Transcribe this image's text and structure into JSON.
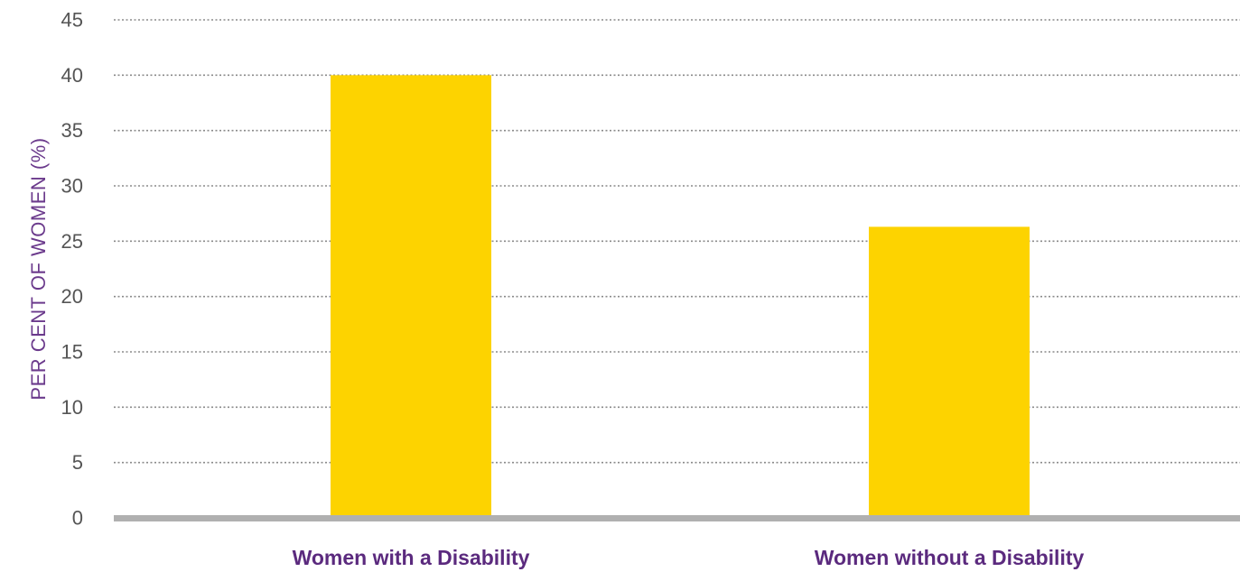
{
  "chart_data": {
    "type": "bar",
    "title": "",
    "xlabel": "",
    "ylabel": "PER CENT OF WOMEN (%)",
    "ylim": [
      0,
      45
    ],
    "yticks": [
      0,
      5,
      10,
      15,
      20,
      25,
      30,
      35,
      40,
      45
    ],
    "grid": true,
    "categories": [
      "Women with a Disability",
      "Women without a Disability"
    ],
    "values": [
      40,
      26.3
    ]
  },
  "colors": {
    "bar": "#FDD300",
    "axis_title": "#6B3A8C",
    "category_label": "#5B2A7E",
    "baseline": "#B0B0B0",
    "grid": "#8A8A8A",
    "tick_label": "#555555"
  }
}
